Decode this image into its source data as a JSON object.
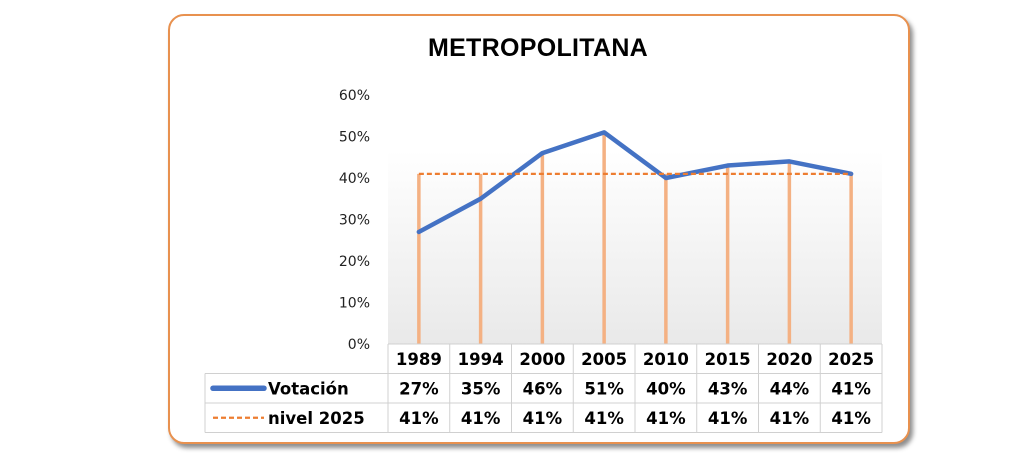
{
  "chart_data": {
    "type": "line",
    "title": "METROPOLITANA",
    "categories": [
      "1989",
      "1994",
      "2000",
      "2005",
      "2010",
      "2015",
      "2020",
      "2025"
    ],
    "series": [
      {
        "name": "Votación",
        "values": [
          27,
          35,
          46,
          51,
          40,
          43,
          44,
          41
        ],
        "labels": [
          "27%",
          "35%",
          "46%",
          "51%",
          "40%",
          "43%",
          "44%",
          "41%"
        ],
        "color": "#4472c4",
        "style": "solid"
      },
      {
        "name": "nivel 2025",
        "values": [
          41,
          41,
          41,
          41,
          41,
          41,
          41,
          41
        ],
        "labels": [
          "41%",
          "41%",
          "41%",
          "41%",
          "41%",
          "41%",
          "41%",
          "41%"
        ],
        "color": "#ed7d31",
        "style": "dashed"
      }
    ],
    "yticks": [
      "0%",
      "10%",
      "20%",
      "30%",
      "40%",
      "50%",
      "60%"
    ],
    "ylim": [
      0,
      60
    ],
    "drop_lines": true,
    "drop_line_color": "#f4b183",
    "data_table": true,
    "grid": false,
    "border_color": "#e8914f"
  }
}
